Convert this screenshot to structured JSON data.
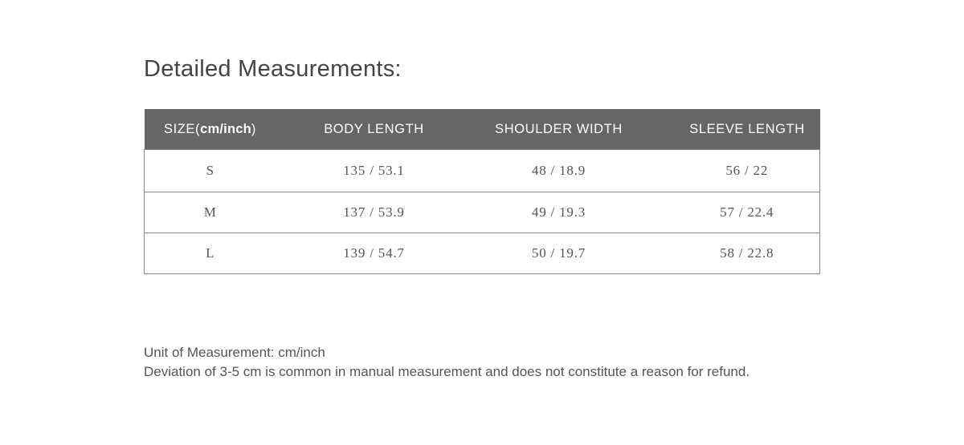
{
  "title": "Detailed Measurements:",
  "table": {
    "headers": {
      "size_prefix": "SIZE(",
      "size_unit": "cm/inch",
      "size_suffix": ")",
      "body_length": "BODY LENGTH",
      "shoulder_width": "SHOULDER WIDTH",
      "sleeve_length": "SLEEVE LENGTH"
    },
    "rows": [
      {
        "size": "S",
        "body": "135 / 53.1",
        "shoulder": "48 / 18.9",
        "sleeve": "56 / 22"
      },
      {
        "size": "M",
        "body": "137 / 53.9",
        "shoulder": "49 / 19.3",
        "sleeve": "57 / 22.4"
      },
      {
        "size": "L",
        "body": "139 / 54.7",
        "shoulder": "50 / 19.7",
        "sleeve": "58 / 22.8"
      }
    ]
  },
  "notes": {
    "unit": "Unit of Measurement: cm/inch",
    "deviation": "Deviation of 3-5 cm is common in manual measurement and does not constitute a reason for refund."
  },
  "colors": {
    "header_bg": "#666666",
    "text": "#555555"
  }
}
